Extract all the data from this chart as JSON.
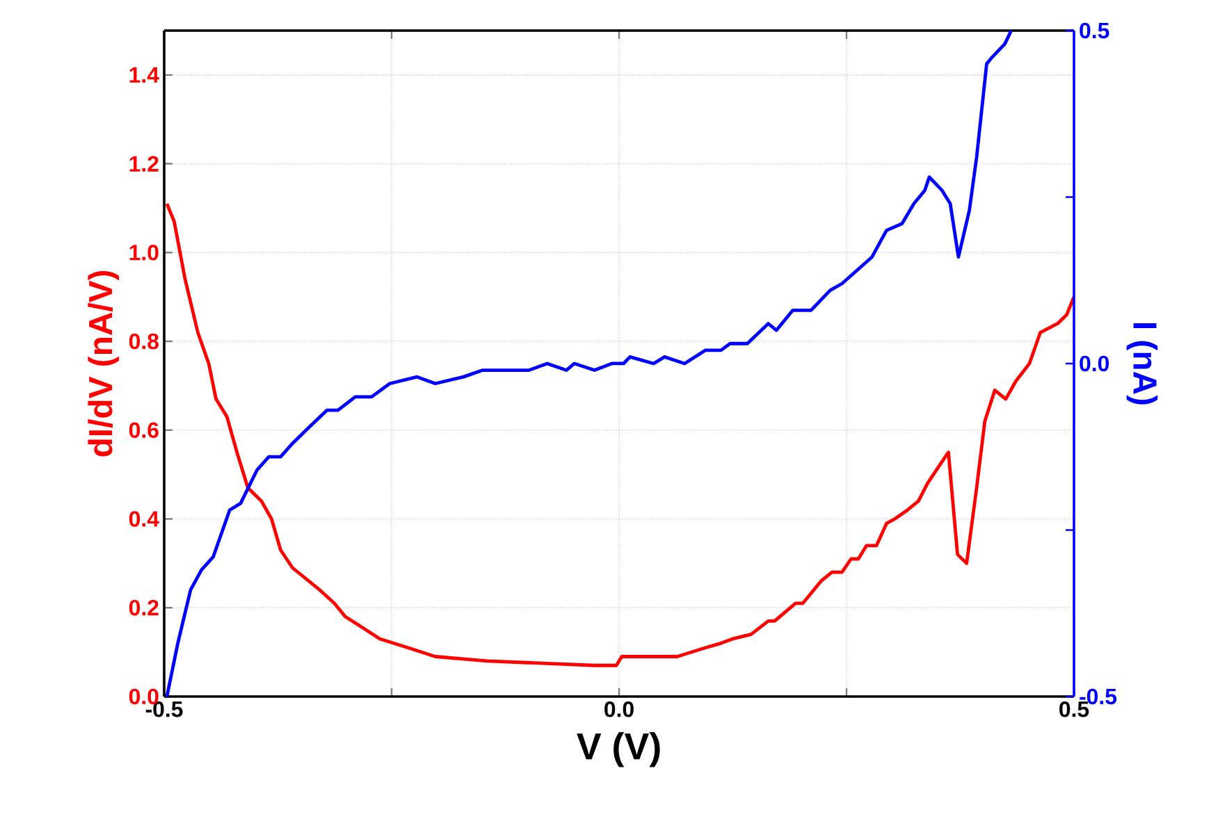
{
  "chart_data": {
    "type": "line",
    "xlabel": "V (V)",
    "ylabel": "dI/dV (nA/V)",
    "y2label": "I (nA)",
    "xlim": [
      -0.5,
      0.5
    ],
    "xticks": [
      -0.5,
      {
        "value": -0.25,
        "label": null
      },
      {
        "value": 0,
        "label": "0.0"
      },
      {
        "value": 0.25,
        "label": null
      },
      0.5
    ],
    "ylim": [
      0,
      1.5
    ],
    "yticks": [
      {
        "value": 0,
        "label": "0.0"
      },
      0.2,
      0.4,
      0.6,
      0.8,
      {
        "value": 1,
        "label": "1.0"
      },
      1.2,
      1.4
    ],
    "y2lim": [
      -0.5,
      0.5
    ],
    "y2ticks": [
      -0.5,
      {
        "value": -0.25,
        "label": null
      },
      {
        "value": 0,
        "label": "0.0"
      },
      {
        "value": 0.25,
        "label": null
      },
      0.5
    ],
    "grid": true,
    "series": [
      {
        "color": "#ff0000",
        "x": [
          -0.497,
          -0.489,
          -0.477,
          -0.463,
          -0.451,
          -0.443,
          -0.431,
          -0.42,
          -0.408,
          -0.393,
          -0.382,
          -0.372,
          -0.359,
          -0.329,
          -0.313,
          -0.301,
          -0.278,
          -0.263,
          -0.232,
          -0.202,
          -0.145,
          -0.027,
          -0.003,
          0.003,
          0.043,
          0.064,
          0.095,
          0.112,
          0.125,
          0.145,
          0.164,
          0.171,
          0.194,
          0.202,
          0.222,
          0.234,
          0.245,
          0.255,
          0.263,
          0.272,
          0.283,
          0.294,
          0.303,
          0.317,
          0.329,
          0.339,
          0.352,
          0.362,
          0.372,
          0.382,
          0.393,
          0.402,
          0.413,
          0.425,
          0.436,
          0.451,
          0.463,
          0.482,
          0.492,
          0.5
        ],
        "values": [
          1.11,
          1.07,
          0.94,
          0.82,
          0.75,
          0.67,
          0.63,
          0.55,
          0.47,
          0.44,
          0.4,
          0.33,
          0.29,
          0.24,
          0.21,
          0.18,
          0.15,
          0.13,
          0.11,
          0.09,
          0.08,
          0.07,
          0.07,
          0.09,
          0.09,
          0.09,
          0.11,
          0.12,
          0.13,
          0.14,
          0.17,
          0.17,
          0.21,
          0.21,
          0.26,
          0.28,
          0.28,
          0.31,
          0.31,
          0.34,
          0.34,
          0.39,
          0.4,
          0.42,
          0.44,
          0.48,
          0.52,
          0.55,
          0.32,
          0.3,
          0.47,
          0.62,
          0.69,
          0.67,
          0.71,
          0.75,
          0.82,
          0.84,
          0.86,
          0.9
        ]
      },
      {
        "color": "#0000ff",
        "axis": "y2",
        "x": [
          -0.497,
          -0.485,
          -0.471,
          -0.459,
          -0.446,
          -0.428,
          -0.416,
          -0.398,
          -0.385,
          -0.372,
          -0.359,
          -0.344,
          -0.321,
          -0.309,
          -0.29,
          -0.272,
          -0.252,
          -0.222,
          -0.202,
          -0.171,
          -0.15,
          -0.119,
          -0.099,
          -0.079,
          -0.058,
          -0.049,
          -0.027,
          -0.008,
          0.005,
          0.012,
          0.038,
          0.05,
          0.072,
          0.095,
          0.112,
          0.122,
          0.141,
          0.164,
          0.173,
          0.191,
          0.211,
          0.232,
          0.245,
          0.278,
          0.294,
          0.311,
          0.324,
          0.336,
          0.341,
          0.355,
          0.364,
          0.373,
          0.385,
          0.393,
          0.404,
          0.41,
          0.424,
          0.431
        ],
        "values": [
          -0.5,
          -0.42,
          -0.34,
          -0.31,
          -0.29,
          -0.22,
          -0.21,
          -0.16,
          -0.14,
          -0.14,
          -0.12,
          -0.1,
          -0.07,
          -0.07,
          -0.05,
          -0.05,
          -0.03,
          -0.02,
          -0.03,
          -0.02,
          -0.01,
          -0.01,
          -0.01,
          0.0,
          -0.01,
          0.0,
          -0.01,
          0.0,
          0.0,
          0.01,
          0.0,
          0.01,
          0.0,
          0.02,
          0.02,
          0.03,
          0.03,
          0.06,
          0.05,
          0.08,
          0.08,
          0.11,
          0.12,
          0.16,
          0.2,
          0.21,
          0.24,
          0.26,
          0.28,
          0.26,
          0.24,
          0.16,
          0.23,
          0.31,
          0.45,
          0.46,
          0.48,
          0.5
        ]
      }
    ]
  }
}
